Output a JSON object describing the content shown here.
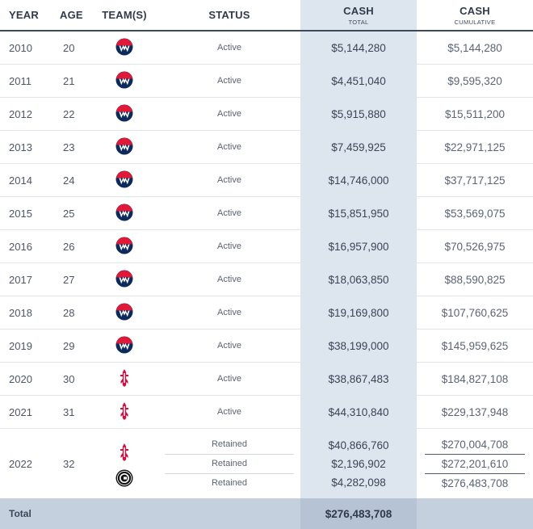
{
  "header": {
    "year": "YEAR",
    "age": "AGE",
    "teams": "TEAM(S)",
    "status": "STATUS",
    "cash_main": "CASH",
    "cash_sub": "TOTAL",
    "cum_main": "CASH",
    "cum_sub": "CUMULATIVE"
  },
  "rows": [
    {
      "year": "2010",
      "age": "20",
      "team_icon": "wizards-logo-icon",
      "status": "Active",
      "cash": "$5,144,280",
      "cumulative": "$5,144,280"
    },
    {
      "year": "2011",
      "age": "21",
      "team_icon": "wizards-logo-icon",
      "status": "Active",
      "cash": "$4,451,040",
      "cumulative": "$9,595,320"
    },
    {
      "year": "2012",
      "age": "22",
      "team_icon": "wizards-logo-icon",
      "status": "Active",
      "cash": "$5,915,880",
      "cumulative": "$15,511,200"
    },
    {
      "year": "2013",
      "age": "23",
      "team_icon": "wizards-logo-icon",
      "status": "Active",
      "cash": "$7,459,925",
      "cumulative": "$22,971,125"
    },
    {
      "year": "2014",
      "age": "24",
      "team_icon": "wizards-logo-icon",
      "status": "Active",
      "cash": "$14,746,000",
      "cumulative": "$37,717,125"
    },
    {
      "year": "2015",
      "age": "25",
      "team_icon": "wizards-logo-icon",
      "status": "Active",
      "cash": "$15,851,950",
      "cumulative": "$53,569,075"
    },
    {
      "year": "2016",
      "age": "26",
      "team_icon": "wizards-logo-icon",
      "status": "Active",
      "cash": "$16,957,900",
      "cumulative": "$70,526,975"
    },
    {
      "year": "2017",
      "age": "27",
      "team_icon": "wizards-logo-icon",
      "status": "Active",
      "cash": "$18,063,850",
      "cumulative": "$88,590,825"
    },
    {
      "year": "2018",
      "age": "28",
      "team_icon": "wizards-logo-icon",
      "status": "Active",
      "cash": "$19,169,800",
      "cumulative": "$107,760,625"
    },
    {
      "year": "2019",
      "age": "29",
      "team_icon": "wizards-logo-icon",
      "status": "Active",
      "cash": "$38,199,000",
      "cumulative": "$145,959,625"
    },
    {
      "year": "2020",
      "age": "30",
      "team_icon": "rockets-logo-icon",
      "status": "Active",
      "cash": "$38,867,483",
      "cumulative": "$184,827,108"
    },
    {
      "year": "2021",
      "age": "31",
      "team_icon": "rockets-logo-icon",
      "status": "Active",
      "cash": "$44,310,840",
      "cumulative": "$229,137,948"
    }
  ],
  "multi_row": {
    "year": "2022",
    "age": "32",
    "team_icons": [
      "rockets-logo-icon",
      "nets-logo-icon"
    ],
    "status": [
      "Retained",
      "Retained",
      "Retained"
    ],
    "cash": [
      "$40,866,760",
      "$2,196,902",
      "$4,282,098"
    ],
    "cumulative": [
      "$270,004,708",
      "$272,201,610",
      "$276,483,708"
    ]
  },
  "total": {
    "label": "Total",
    "cash": "$276,483,708"
  },
  "colors": {
    "wizards_navy": "#0c2b5c",
    "wizards_red": "#e31837",
    "rockets_red": "#ce1141",
    "nets_black": "#111111",
    "cash_column_bg": "#dde5ef",
    "total_row_bg": "#c5d0de"
  }
}
